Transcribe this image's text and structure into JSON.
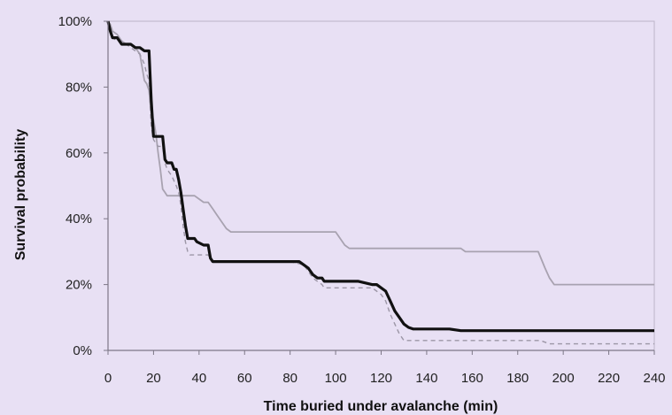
{
  "chart_data": {
    "type": "line",
    "title": "",
    "xlabel": "Time buried under avalanche (min)",
    "ylabel": "Survival probability",
    "xlim": [
      0,
      240
    ],
    "ylim": [
      0,
      100
    ],
    "x_ticks": [
      0,
      20,
      40,
      60,
      80,
      100,
      120,
      140,
      160,
      180,
      200,
      220,
      240
    ],
    "y_ticks": [
      0,
      20,
      40,
      60,
      80,
      100
    ],
    "x_tick_labels": [
      "0",
      "20",
      "40",
      "60",
      "80",
      "100",
      "120",
      "140",
      "160",
      "180",
      "200",
      "220",
      "240"
    ],
    "y_tick_labels": [
      "0%",
      "20%",
      "40%",
      "60%",
      "80%",
      "100%"
    ],
    "grid": false,
    "legend": "none",
    "series": [
      {
        "style": "solid-thin-gray",
        "color": "#a8a2b0",
        "points": [
          [
            0,
            100
          ],
          [
            1,
            99
          ],
          [
            2,
            97
          ],
          [
            4,
            96
          ],
          [
            6,
            94
          ],
          [
            8,
            93
          ],
          [
            10,
            93
          ],
          [
            12,
            92
          ],
          [
            14,
            90
          ],
          [
            16,
            82
          ],
          [
            17,
            81
          ],
          [
            18,
            79
          ],
          [
            19,
            72
          ],
          [
            20,
            70
          ],
          [
            21,
            66
          ],
          [
            22,
            60
          ],
          [
            23,
            55
          ],
          [
            24,
            49
          ],
          [
            25,
            48
          ],
          [
            26,
            47
          ],
          [
            28,
            47
          ],
          [
            30,
            47
          ],
          [
            32,
            47
          ],
          [
            34,
            47
          ],
          [
            36,
            47
          ],
          [
            38,
            47
          ],
          [
            40,
            46
          ],
          [
            42,
            45
          ],
          [
            44,
            45
          ],
          [
            46,
            43
          ],
          [
            48,
            41
          ],
          [
            50,
            39
          ],
          [
            52,
            37
          ],
          [
            54,
            36
          ],
          [
            56,
            36
          ],
          [
            60,
            36
          ],
          [
            70,
            36
          ],
          [
            80,
            36
          ],
          [
            90,
            36
          ],
          [
            100,
            36
          ],
          [
            102,
            34
          ],
          [
            104,
            32
          ],
          [
            106,
            31
          ],
          [
            110,
            31
          ],
          [
            120,
            31
          ],
          [
            130,
            31
          ],
          [
            140,
            31
          ],
          [
            150,
            31
          ],
          [
            155,
            31
          ],
          [
            157,
            30
          ],
          [
            165,
            30
          ],
          [
            175,
            30
          ],
          [
            180,
            30
          ],
          [
            189,
            30
          ],
          [
            192,
            25
          ],
          [
            194,
            22
          ],
          [
            196,
            20
          ],
          [
            200,
            20
          ],
          [
            220,
            20
          ],
          [
            240,
            20
          ]
        ]
      },
      {
        "style": "solid-thick-black",
        "color": "#111111",
        "points": [
          [
            0,
            100
          ],
          [
            1,
            97
          ],
          [
            2,
            95
          ],
          [
            4,
            95
          ],
          [
            5,
            94
          ],
          [
            6,
            93
          ],
          [
            8,
            93
          ],
          [
            10,
            93
          ],
          [
            12,
            92
          ],
          [
            14,
            92
          ],
          [
            16,
            91
          ],
          [
            18,
            91
          ],
          [
            19,
            76
          ],
          [
            20,
            65
          ],
          [
            22,
            65
          ],
          [
            24,
            65
          ],
          [
            25,
            58
          ],
          [
            26,
            57
          ],
          [
            28,
            57
          ],
          [
            29,
            55
          ],
          [
            30,
            55
          ],
          [
            31,
            52
          ],
          [
            32,
            48
          ],
          [
            33,
            43
          ],
          [
            34,
            38
          ],
          [
            35,
            34
          ],
          [
            36,
            34
          ],
          [
            38,
            34
          ],
          [
            39,
            33
          ],
          [
            42,
            32
          ],
          [
            44,
            32
          ],
          [
            45,
            28
          ],
          [
            46,
            27
          ],
          [
            50,
            27
          ],
          [
            60,
            27
          ],
          [
            70,
            27
          ],
          [
            80,
            27
          ],
          [
            84,
            27
          ],
          [
            86,
            26
          ],
          [
            88,
            25
          ],
          [
            90,
            23
          ],
          [
            92,
            22
          ],
          [
            94,
            22
          ],
          [
            95,
            21
          ],
          [
            100,
            21
          ],
          [
            110,
            21
          ],
          [
            116,
            20
          ],
          [
            118,
            20
          ],
          [
            120,
            19
          ],
          [
            122,
            18
          ],
          [
            124,
            15
          ],
          [
            126,
            12
          ],
          [
            128,
            10
          ],
          [
            130,
            8
          ],
          [
            132,
            7
          ],
          [
            134,
            6.5
          ],
          [
            140,
            6.5
          ],
          [
            150,
            6.5
          ],
          [
            155,
            6
          ],
          [
            160,
            6
          ],
          [
            180,
            6
          ],
          [
            200,
            6
          ],
          [
            220,
            6
          ],
          [
            240,
            6
          ]
        ]
      },
      {
        "style": "dashed-gray",
        "color": "#9c96a6",
        "points": [
          [
            0,
            100
          ],
          [
            2,
            95
          ],
          [
            4,
            94
          ],
          [
            6,
            94
          ],
          [
            8,
            93
          ],
          [
            10,
            92
          ],
          [
            12,
            91
          ],
          [
            14,
            90
          ],
          [
            16,
            87
          ],
          [
            17,
            84
          ],
          [
            18,
            82
          ],
          [
            19,
            68
          ],
          [
            20,
            64
          ],
          [
            22,
            62
          ],
          [
            24,
            62
          ],
          [
            25,
            57
          ],
          [
            26,
            55
          ],
          [
            28,
            53
          ],
          [
            30,
            50
          ],
          [
            31,
            48
          ],
          [
            32,
            44
          ],
          [
            33,
            38
          ],
          [
            34,
            33
          ],
          [
            35,
            30
          ],
          [
            36,
            29
          ],
          [
            40,
            29
          ],
          [
            44,
            29
          ],
          [
            45,
            28
          ],
          [
            46,
            27
          ],
          [
            50,
            27
          ],
          [
            60,
            27
          ],
          [
            70,
            27
          ],
          [
            80,
            27
          ],
          [
            86,
            26
          ],
          [
            88,
            24
          ],
          [
            90,
            22
          ],
          [
            92,
            21
          ],
          [
            94,
            20
          ],
          [
            95,
            19
          ],
          [
            100,
            19
          ],
          [
            110,
            19
          ],
          [
            116,
            19
          ],
          [
            118,
            18
          ],
          [
            120,
            17
          ],
          [
            122,
            15
          ],
          [
            124,
            11
          ],
          [
            126,
            8
          ],
          [
            128,
            5
          ],
          [
            130,
            3
          ],
          [
            140,
            3
          ],
          [
            160,
            3
          ],
          [
            170,
            3
          ],
          [
            180,
            3
          ],
          [
            190,
            3
          ],
          [
            194,
            2
          ],
          [
            200,
            2
          ],
          [
            220,
            2
          ],
          [
            240,
            2
          ]
        ]
      }
    ]
  }
}
